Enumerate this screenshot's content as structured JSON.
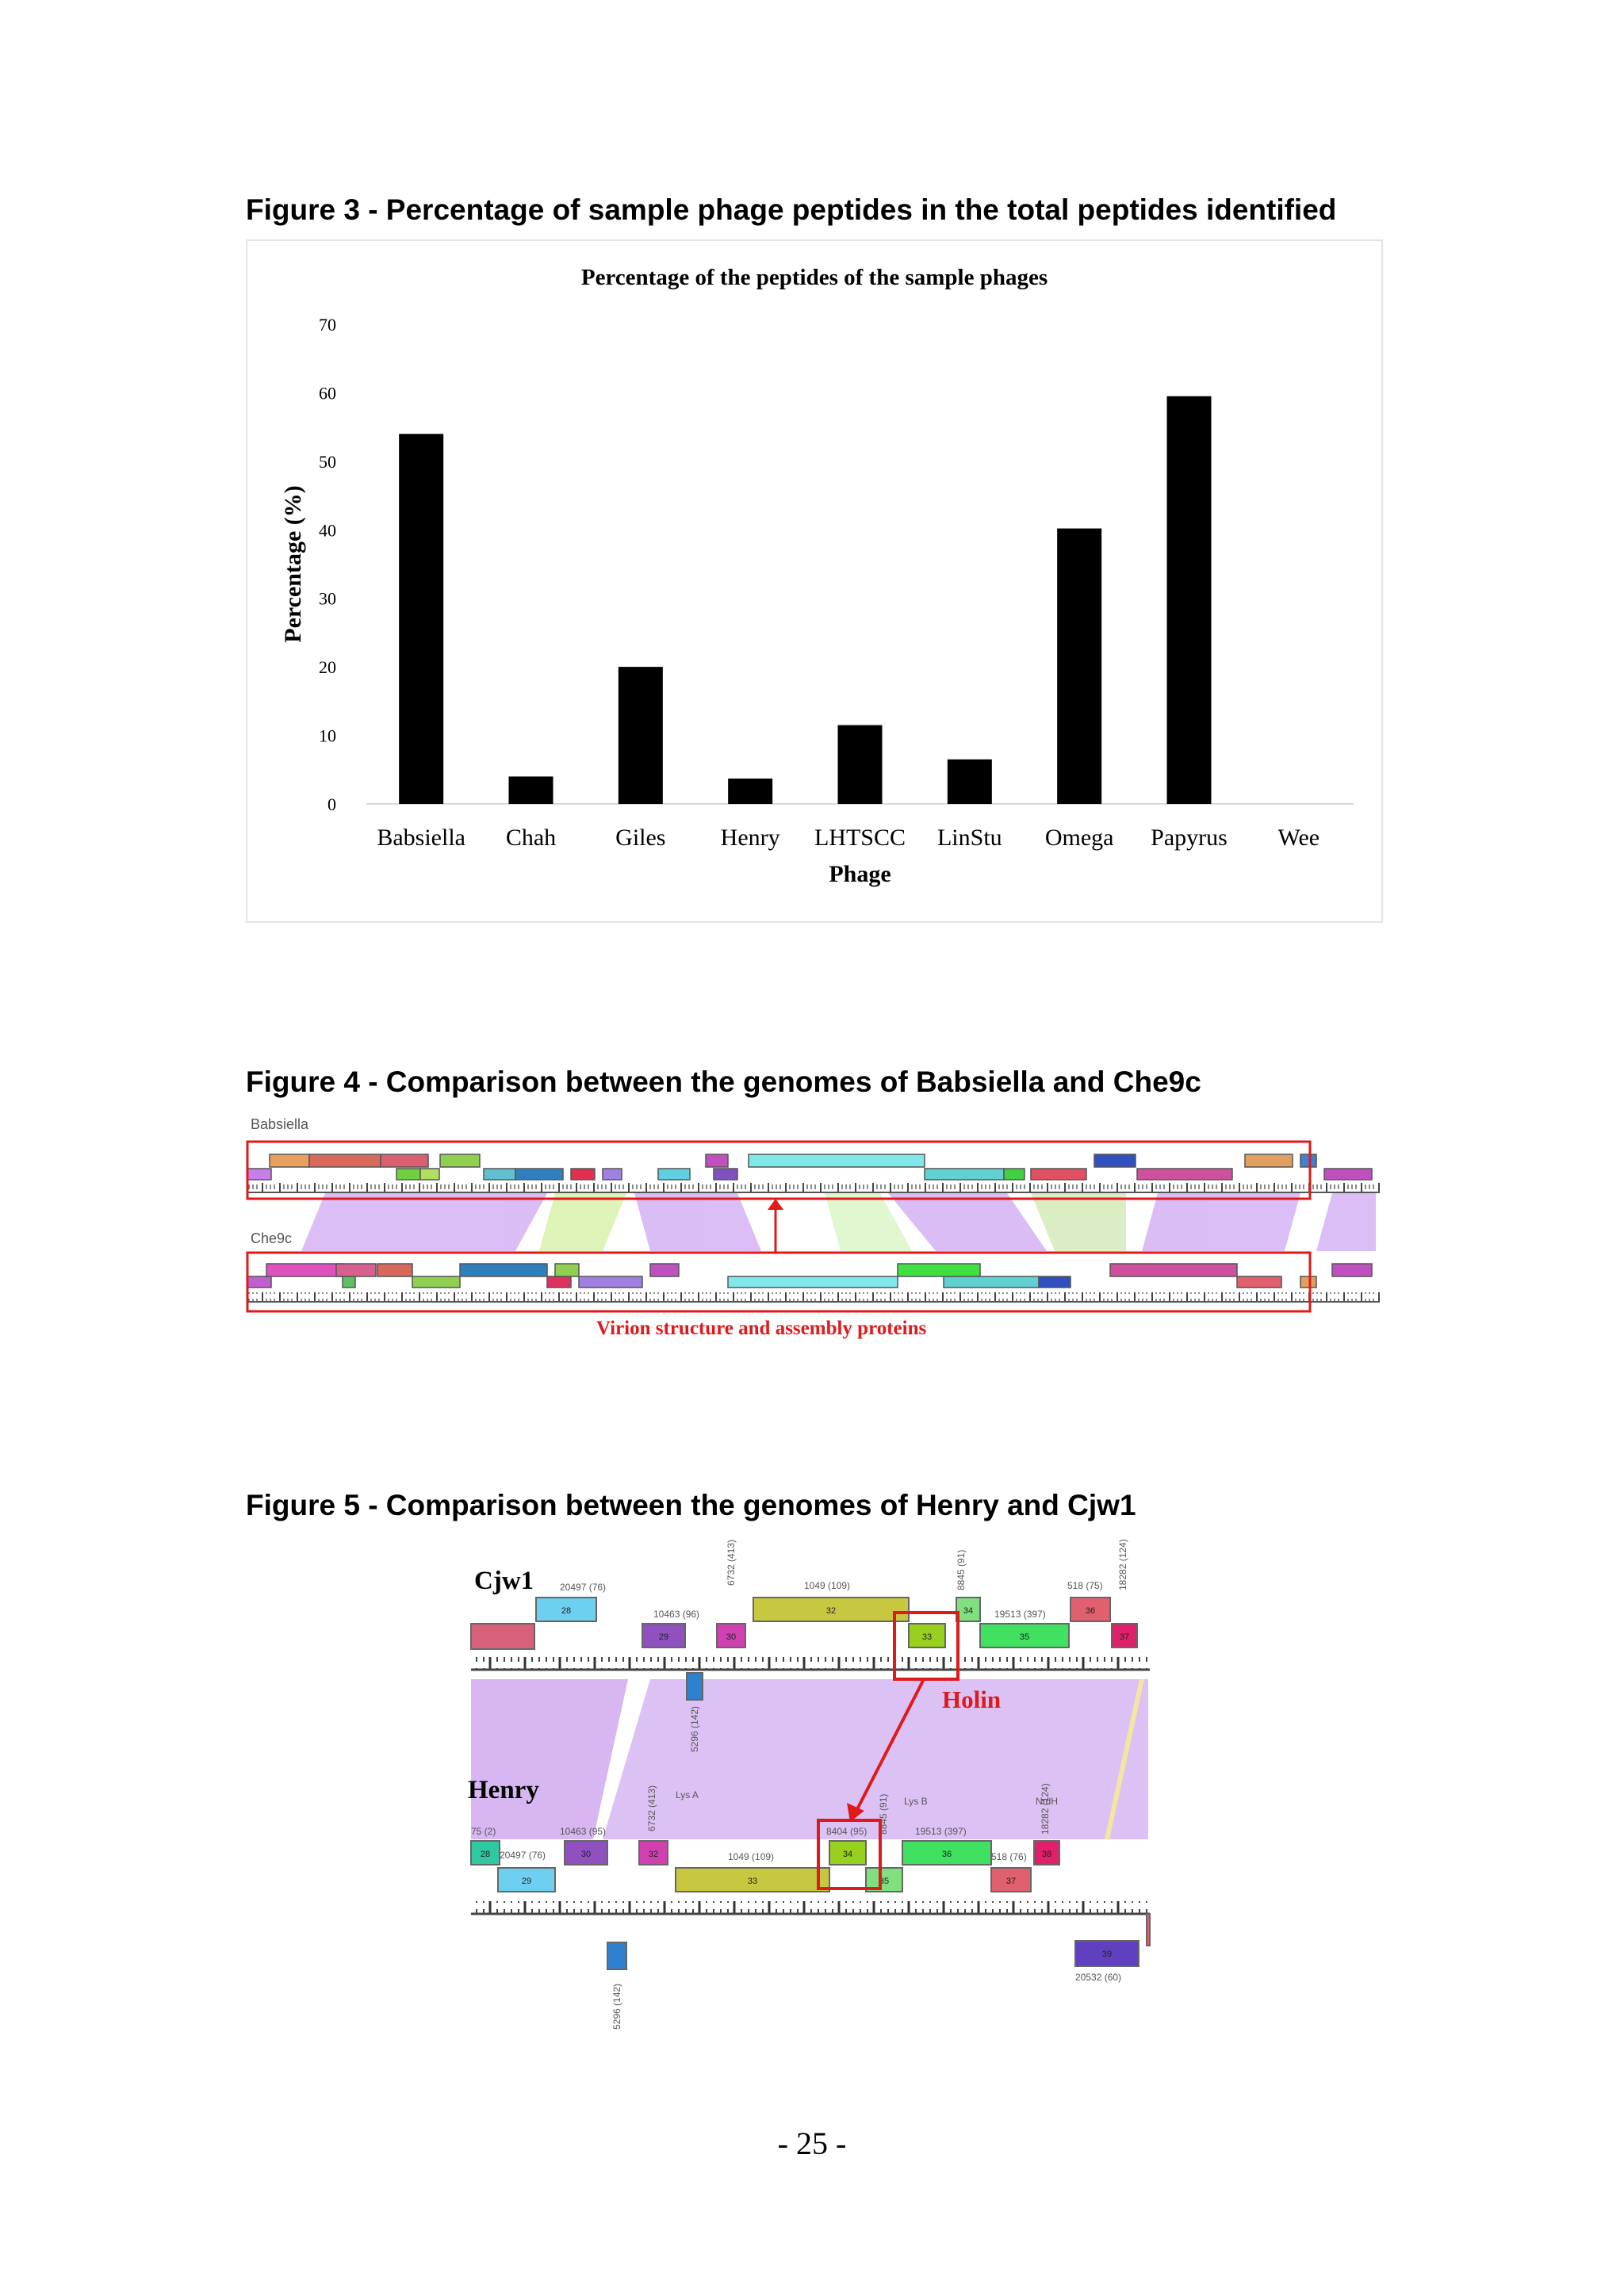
{
  "figure3": {
    "caption": "Figure 3  - Percentage of sample phage peptides in the total peptides identified"
  },
  "chart_data": {
    "type": "bar",
    "title": "Percentage of the peptides of the sample phages",
    "xlabel": "Phage",
    "ylabel": "Percentage (%)",
    "categories": [
      "Babsiella",
      "Chah",
      "Giles",
      "Henry",
      "LHTSCC",
      "LinStu",
      "Omega",
      "Papyrus",
      "Wee"
    ],
    "values": [
      54,
      4,
      20,
      3.7,
      11.5,
      6.5,
      40.2,
      59.5,
      0
    ],
    "ylim": [
      0,
      70
    ],
    "yticks": [
      0,
      10,
      20,
      30,
      40,
      50,
      60,
      70
    ],
    "grid": false,
    "legend": "none",
    "bar_color": "#000000"
  },
  "figure4": {
    "caption": "Figure 4  - Comparison between the genomes of Babsiella and Che9c",
    "genome_top": "Babsiella",
    "genome_bottom": "Che9c",
    "annotation": "Virion structure and assembly proteins",
    "annotation_color": "#e0191b"
  },
  "figure5": {
    "caption": "Figure 5  - Comparison between the genomes of Henry and Cjw1",
    "genome_top": "Cjw1",
    "genome_bottom": "Henry",
    "highlight_label": "Holin",
    "highlight_color": "#e0191b",
    "top_gene_labels": [
      "20497 (76)",
      "10463 (96)",
      "6732 (413)",
      "1049 (109)",
      "8845 (91)",
      "19513 (397)",
      "518 (75)",
      "18282 (124)",
      "5296 (142)"
    ],
    "top_gene_numbers": [
      "28",
      "29",
      "30",
      "32",
      "33",
      "34",
      "35",
      "36",
      "37"
    ],
    "bottom_gene_labels": [
      "75 (2)",
      "10463 (95)",
      "6732 (413)",
      "Lys A",
      "Lys B",
      "NrdH",
      "18282 (124)",
      "20497 (76)",
      "8404 (95)",
      "8845 (91)",
      "19513 (397)",
      "1049 (109)",
      "518 (76)",
      "5296 (142)",
      "20532 (60)"
    ],
    "bottom_gene_numbers": [
      "28",
      "29",
      "30",
      "32",
      "33",
      "34",
      "35",
      "36",
      "37",
      "38",
      "39"
    ]
  },
  "page": {
    "number": "- 25 -"
  }
}
